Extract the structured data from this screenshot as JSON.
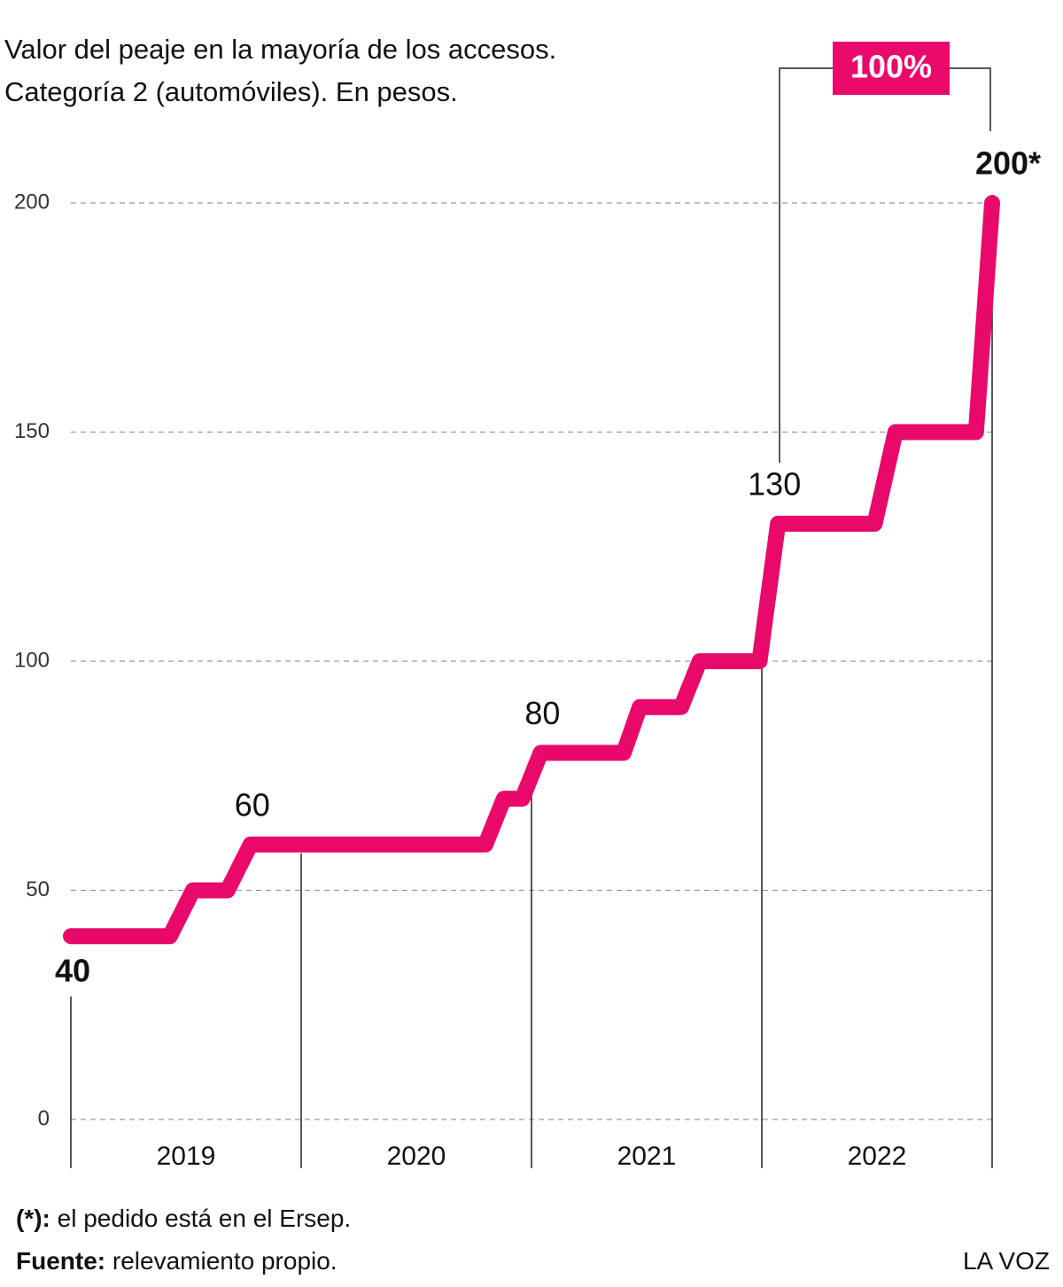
{
  "chart_data": {
    "type": "line",
    "title": "Valor del peaje en la mayoría de los accesos.",
    "subtitle": "Categoría 2 (automóviles). En pesos.",
    "categories": [
      "2019",
      "2020",
      "2021",
      "2022"
    ],
    "xlim": [
      2019,
      2023
    ],
    "ylim": [
      0,
      200
    ],
    "yticks": [
      0,
      50,
      100,
      150,
      200
    ],
    "grid": true,
    "series": [
      {
        "color": "#e8096b",
        "x": [
          2019.0,
          2019.43,
          2019.53,
          2019.68,
          2019.78,
          2020.8,
          2020.88,
          2020.96,
          2021.04,
          2021.4,
          2021.47,
          2021.65,
          2021.73,
          2021.99,
          2022.07,
          2022.49,
          2022.58,
          2022.93,
          2023.0
        ],
        "values": [
          40,
          40,
          50,
          50,
          60,
          60,
          70,
          70,
          80,
          80,
          90,
          90,
          100,
          100,
          130,
          130,
          150,
          150,
          200
        ],
        "value_labels": [
          "40",
          null,
          null,
          null,
          "60",
          null,
          null,
          null,
          "80",
          null,
          null,
          null,
          null,
          null,
          "130",
          null,
          null,
          null,
          "200*"
        ]
      }
    ],
    "annotation": "100%",
    "footnote": {
      "label": "(*):",
      "text": "el pedido está en el Ersep."
    },
    "source": {
      "label": "Fuente:",
      "text": "relevamiento propio."
    },
    "credit": "LA VOZ"
  }
}
